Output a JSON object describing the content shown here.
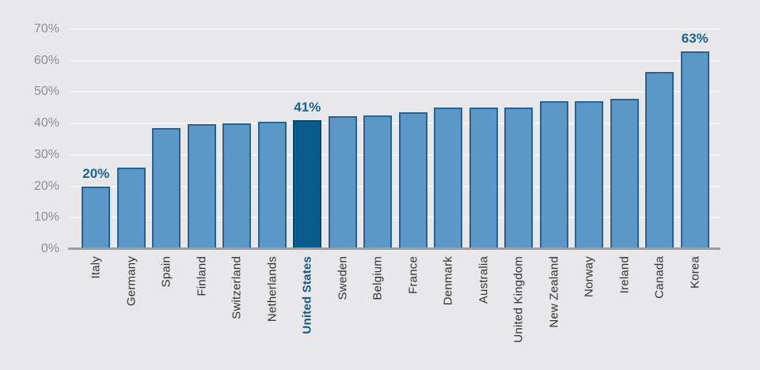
{
  "chart_data": {
    "type": "bar",
    "title": "",
    "xlabel": "",
    "ylabel": "",
    "categories": [
      "Italy",
      "Germany",
      "Spain",
      "Finland",
      "Switzerland",
      "Netherlands",
      "United States",
      "Sweden",
      "Belgium",
      "France",
      "Denmark",
      "Australia",
      "United Kingdom",
      "New Zealand",
      "Norway",
      "Ireland",
      "Canada",
      "Korea"
    ],
    "values": [
      20,
      26,
      38.5,
      39.7,
      40,
      40.5,
      41,
      42.4,
      42.6,
      43.5,
      45.2,
      45.2,
      45,
      47.2,
      47.1,
      47.9,
      56.4,
      63
    ],
    "unit": "%",
    "ylim": [
      0,
      70
    ],
    "ytick_step": 10,
    "yticks": [
      {
        "value": 0,
        "label": "0%"
      },
      {
        "value": 10,
        "label": "10%"
      },
      {
        "value": 20,
        "label": "20%"
      },
      {
        "value": 30,
        "label": "30%"
      },
      {
        "value": 40,
        "label": "40%"
      },
      {
        "value": 50,
        "label": "50%"
      },
      {
        "value": 60,
        "label": "60%"
      },
      {
        "value": 70,
        "label": "70%"
      }
    ],
    "grid": true,
    "legend": "none",
    "highlight": {
      "index": 6,
      "category": "United States"
    },
    "data_labels": [
      {
        "index": 0,
        "text": "20%"
      },
      {
        "index": 6,
        "text": "41%"
      },
      {
        "index": 17,
        "text": "63%"
      }
    ]
  },
  "colors": {
    "background": "#e8e8ea",
    "bar_fill": "#5b98c8",
    "bar_border": "#2a6391",
    "highlight_fill": "#0a5c8c",
    "highlight_border": "#07496e",
    "gridline": "#f4f4f6",
    "axis_line": "#9d9d9f",
    "ytick_text": "#909092",
    "xtick_text": "#333333",
    "highlight_text": "#155a8c",
    "data_label_text": "#1c6496"
  }
}
